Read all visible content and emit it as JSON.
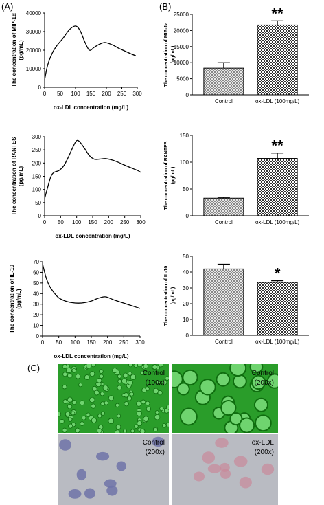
{
  "panel_labels": {
    "a": "(A)",
    "b": "(B)",
    "c": "(C)"
  },
  "chart_data": [
    {
      "id": "line-mip",
      "type": "line",
      "xlabel": "ox-LDL  concentration (mg/L)",
      "ylabel": [
        "The concentration of MIP-1α",
        "(pg/mL)"
      ],
      "xlim": [
        0,
        300
      ],
      "ylim": [
        0,
        40000
      ],
      "xticks": [
        0,
        50,
        100,
        150,
        200,
        250,
        300
      ],
      "yticks": [
        0,
        10000,
        20000,
        30000,
        40000
      ],
      "x": [
        0,
        10,
        25,
        40,
        60,
        80,
        100,
        115,
        130,
        145,
        160,
        175,
        190,
        200,
        220,
        240,
        260,
        280,
        295
      ],
      "y": [
        4000,
        12000,
        18500,
        22500,
        26500,
        31000,
        33000,
        30500,
        24500,
        20000,
        21500,
        23000,
        24000,
        24000,
        22800,
        21000,
        19500,
        18000,
        17000
      ]
    },
    {
      "id": "line-rantes",
      "type": "line",
      "xlabel": "ox-LDL concentration (mg/L)",
      "ylabel": [
        "The concentration of RANTES",
        "(pg/mL)"
      ],
      "xlim": [
        0,
        300
      ],
      "ylim": [
        0,
        300
      ],
      "xticks": [
        0,
        50,
        100,
        150,
        200,
        250,
        300
      ],
      "yticks": [
        0,
        50,
        100,
        150,
        200,
        250,
        300
      ],
      "x": [
        0,
        10,
        20,
        30,
        45,
        60,
        75,
        90,
        100,
        110,
        125,
        140,
        155,
        170,
        190,
        210,
        230,
        250,
        270,
        290,
        300
      ],
      "y": [
        65,
        110,
        150,
        165,
        172,
        190,
        225,
        265,
        285,
        280,
        255,
        228,
        215,
        215,
        217,
        212,
        203,
        192,
        182,
        172,
        165
      ]
    },
    {
      "id": "line-il10",
      "type": "line",
      "xlabel": "ox-LDL concentration (mg/L)",
      "ylabel": [
        "The concentration of IL-10",
        "(pg/mL)"
      ],
      "xlim": [
        0,
        300
      ],
      "ylim": [
        0,
        70
      ],
      "xticks": [
        0,
        50,
        100,
        150,
        200,
        250,
        300
      ],
      "yticks": [
        0,
        10,
        20,
        30,
        40,
        50,
        60,
        70
      ],
      "x": [
        0,
        10,
        20,
        35,
        50,
        70,
        90,
        110,
        130,
        150,
        170,
        190,
        200,
        220,
        240,
        260,
        280,
        300
      ],
      "y": [
        68,
        56,
        48,
        41,
        36,
        33,
        31.5,
        31,
        31.5,
        33,
        35.5,
        37,
        36.5,
        34,
        32,
        30,
        28,
        26
      ]
    },
    {
      "id": "bar-mip",
      "type": "bar",
      "categories": [
        "Control",
        "ox-LDL (100mg/L)"
      ],
      "values": [
        8300,
        21700
      ],
      "errors": [
        1700,
        1300
      ],
      "significance": [
        "",
        "**"
      ],
      "ylabel": [
        "The concentration of MIP-1a",
        "(pg/mL)"
      ],
      "ylim": [
        0,
        25000
      ],
      "yticks": [
        0,
        5000,
        10000,
        15000,
        20000,
        25000
      ]
    },
    {
      "id": "bar-rantes",
      "type": "bar",
      "categories": [
        "Control",
        "ox-LDL (100mg/L)"
      ],
      "values": [
        33,
        107
      ],
      "errors": [
        1.5,
        10
      ],
      "significance": [
        "",
        "**"
      ],
      "ylabel": [
        "The concentration of RANTES",
        "(pg/mL)"
      ],
      "ylim": [
        0,
        150
      ],
      "yticks": [
        0,
        50,
        100,
        150
      ]
    },
    {
      "id": "bar-il10",
      "type": "bar",
      "categories": [
        "Control",
        "ox-LDL (100mg/L)"
      ],
      "values": [
        42,
        33.5
      ],
      "errors": [
        3,
        1
      ],
      "significance": [
        "",
        "*"
      ],
      "ylabel": [
        "The concentration of IL-10",
        "(pg/mL)"
      ],
      "ylim": [
        0,
        50
      ],
      "yticks": [
        0,
        10,
        20,
        30,
        40,
        50
      ]
    }
  ],
  "micrographs": [
    {
      "label": [
        "Control",
        "(100x)"
      ],
      "stain": "fluorescent-green",
      "cell_density": "dense"
    },
    {
      "label": [
        "Control",
        "(200x)"
      ],
      "stain": "fluorescent-green",
      "cell_density": "sparse-large"
    },
    {
      "label": [
        "Control",
        "(200x)"
      ],
      "stain": "blue-purple",
      "cell_density": "few"
    },
    {
      "label": [
        "ox-LDL",
        "(200x)"
      ],
      "stain": "red-pink",
      "cell_density": "few"
    }
  ]
}
